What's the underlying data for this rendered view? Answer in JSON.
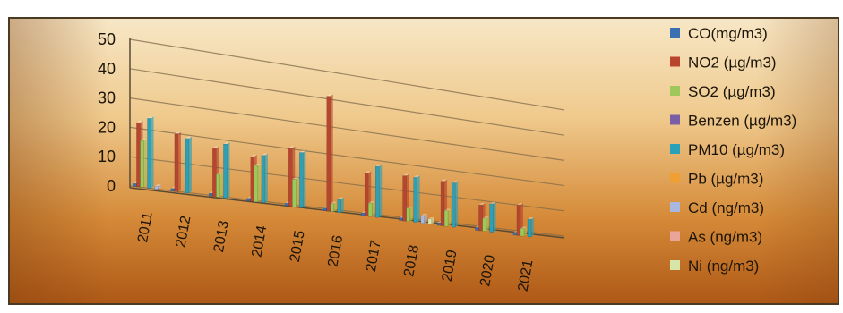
{
  "chart_data": {
    "type": "bar",
    "categories": [
      "2011",
      "2012",
      "2013",
      "2014",
      "2015",
      "2016",
      "2017",
      "2018",
      "2019",
      "2020",
      "2021"
    ],
    "ylim": [
      0,
      50
    ],
    "yticks": [
      "0",
      "10",
      "20",
      "30",
      "40",
      "50"
    ],
    "grid": true,
    "legend_position": "right",
    "series": [
      {
        "name": "CO(mg/m3)",
        "color": "#3b6fb3",
        "values": [
          1,
          1,
          1,
          1,
          1,
          1,
          1,
          1,
          1,
          1,
          1
        ]
      },
      {
        "name": "NO2 (µg/m3)",
        "color": "#b8452e",
        "values": [
          22,
          20,
          17,
          16,
          21,
          42,
          16,
          17,
          17,
          10,
          12
        ]
      },
      {
        "name": "SO2 (µg/m3)",
        "color": "#9fc85a",
        "values": [
          16,
          0,
          8,
          13,
          10,
          3,
          5,
          5,
          6,
          5,
          3
        ]
      },
      {
        "name": "Benzen (µg/m3)",
        "color": "#7a5ea6",
        "values": [
          0,
          0,
          0,
          0,
          0,
          0,
          0,
          0,
          0,
          0,
          0
        ]
      },
      {
        "name": "PM10 (µg/m3)",
        "color": "#2aa1b8",
        "values": [
          24,
          19,
          19,
          17,
          20,
          5,
          19,
          17,
          17,
          11,
          7
        ]
      },
      {
        "name": "Pb (µg/m3)",
        "color": "#f0a032",
        "values": [
          0,
          0,
          0,
          0,
          0,
          0,
          0,
          0,
          0,
          0,
          0
        ]
      },
      {
        "name": "Cd (ng/m3)",
        "color": "#a9b8e0",
        "values": [
          1,
          0,
          0,
          0,
          0,
          0,
          0,
          3,
          0,
          0,
          0
        ]
      },
      {
        "name": "As (ng/m3)",
        "color": "#eaa49a",
        "values": [
          0,
          0,
          0,
          0,
          0,
          0,
          0,
          0,
          0,
          0,
          0
        ]
      },
      {
        "name": "Ni (ng/m3)",
        "color": "#d7e6a8",
        "values": [
          0,
          0,
          0,
          0,
          0,
          0,
          0,
          2,
          0,
          0,
          0
        ]
      }
    ]
  }
}
